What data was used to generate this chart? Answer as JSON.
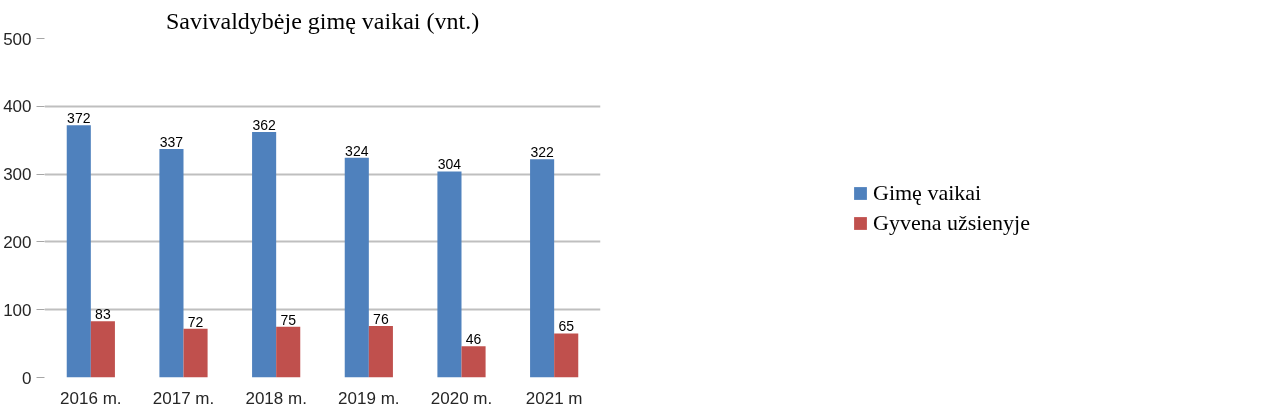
{
  "chart_data": {
    "type": "bar",
    "title": "Savivaldybėje gimę vaikai (vnt.)",
    "categories": [
      "2016 m.",
      "2017 m.",
      "2018 m.",
      "2019 m.",
      "2020 m.",
      "2021 m"
    ],
    "series": [
      {
        "name": "Gimę vaikai",
        "color": "#4f81bd",
        "values": [
          372,
          337,
          362,
          324,
          304,
          322
        ]
      },
      {
        "name": "Gyvena užsienyje",
        "color": "#c0504d",
        "values": [
          83,
          72,
          75,
          76,
          46,
          65
        ]
      }
    ],
    "ylim": [
      0,
      500
    ],
    "yticks": [
      0,
      100,
      200,
      300,
      400,
      500
    ],
    "grid": "y",
    "legend": "right",
    "data_labels": true
  }
}
